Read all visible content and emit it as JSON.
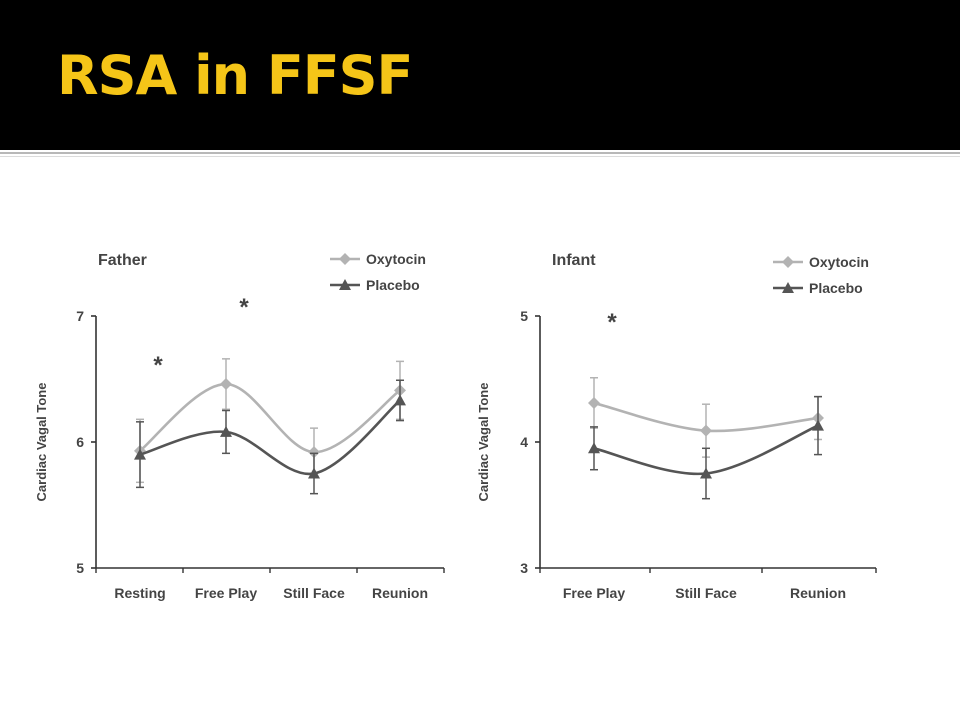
{
  "slide": {
    "title": "RSA in FFSF"
  },
  "chart_data": [
    {
      "type": "line",
      "title": "Father",
      "ylabel": "Cardiac Vagal Tone",
      "xlabel": "",
      "categories": [
        "Resting",
        "Free Play",
        "Still Face",
        "Reunion"
      ],
      "ylim": [
        5,
        7
      ],
      "yticks": [
        5,
        6,
        7
      ],
      "legend": "top-right",
      "grid": false,
      "series": [
        {
          "name": "Oxytocin",
          "color": "#b3b3b3",
          "marker": "diamond",
          "values": [
            5.93,
            6.46,
            5.92,
            6.41
          ],
          "error": [
            0.25,
            0.2,
            0.19,
            0.23
          ]
        },
        {
          "name": "Placebo",
          "color": "#555555",
          "marker": "triangle",
          "values": [
            5.9,
            6.08,
            5.75,
            6.33
          ],
          "error": [
            0.26,
            0.17,
            0.16,
            0.16
          ]
        }
      ],
      "annotations": [
        {
          "text": "*",
          "x": 0,
          "y": 6.66
        },
        {
          "text": "*",
          "x": 1,
          "y": 7.12
        }
      ]
    },
    {
      "type": "line",
      "title": "Infant",
      "ylabel": "Cardiac Vagal Tone",
      "xlabel": "",
      "categories": [
        "Free Play",
        "Still Face",
        "Reunion"
      ],
      "ylim": [
        3,
        5
      ],
      "yticks": [
        3,
        4,
        5
      ],
      "legend": "top-right",
      "grid": false,
      "series": [
        {
          "name": "Oxytocin",
          "color": "#b3b3b3",
          "marker": "diamond",
          "values": [
            4.31,
            4.09,
            4.19
          ],
          "error": [
            0.2,
            0.21,
            0.17
          ]
        },
        {
          "name": "Placebo",
          "color": "#555555",
          "marker": "triangle",
          "values": [
            3.95,
            3.75,
            4.13
          ],
          "error": [
            0.17,
            0.2,
            0.23
          ]
        }
      ],
      "annotations": [
        {
          "text": "*",
          "x": 0,
          "y": 5.0
        }
      ]
    }
  ]
}
